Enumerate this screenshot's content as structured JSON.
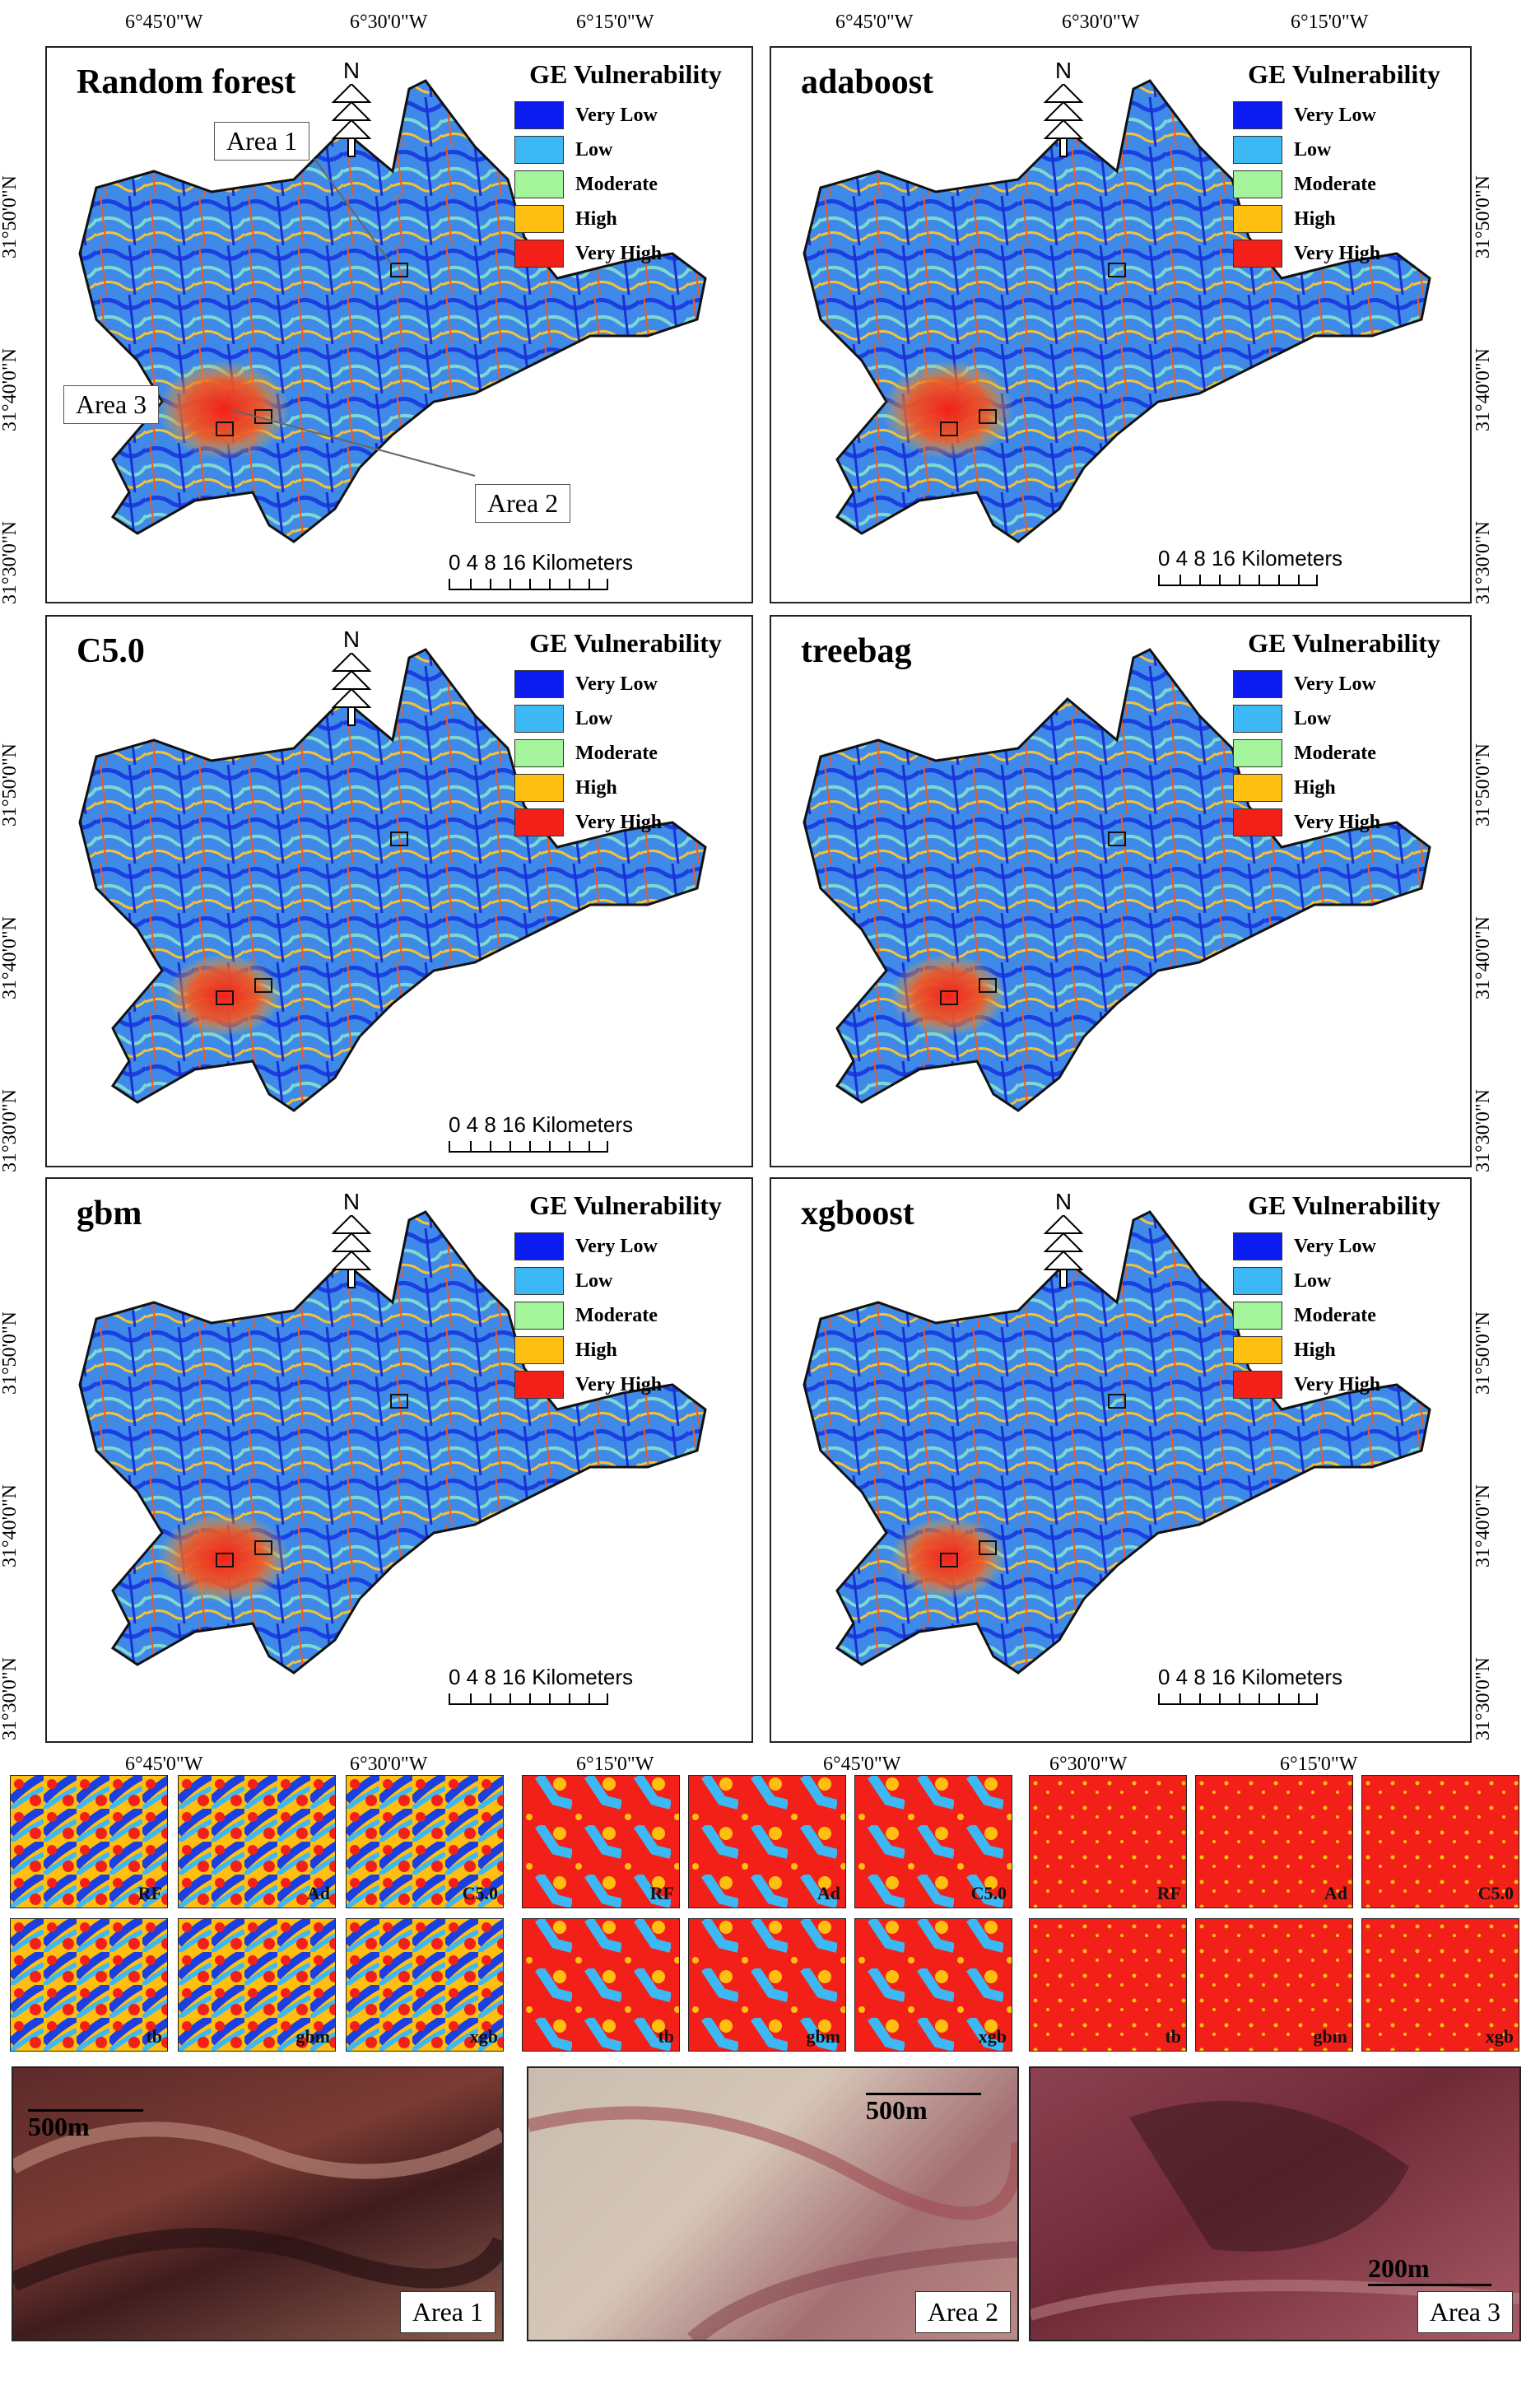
{
  "lon_labels": [
    "6°45'0\"W",
    "6°30'0\"W",
    "6°15'0\"W"
  ],
  "lat_labels": [
    "31°50'0\"N",
    "31°40'0\"N",
    "31°30'0\"N"
  ],
  "legend": {
    "title": "GE Vulnerability",
    "classes": [
      {
        "label": "Very Low",
        "color": "#0b1cf0"
      },
      {
        "label": "Low",
        "color": "#3cb8f4"
      },
      {
        "label": "Moderate",
        "color": "#a4f49c"
      },
      {
        "label": "High",
        "color": "#ffbf10"
      },
      {
        "label": "Very High",
        "color": "#f3201a"
      }
    ]
  },
  "north_label": "N",
  "scale": {
    "nums": "0   4   8          16 Kilometers"
  },
  "panels": [
    {
      "title": "Random forest"
    },
    {
      "title": "adaboost"
    },
    {
      "title": "C5.0"
    },
    {
      "title": "treebag"
    },
    {
      "title": "gbm"
    },
    {
      "title": "xgboost"
    }
  ],
  "callouts": {
    "area1": "Area 1",
    "area2": "Area 2",
    "area3": "Area 3"
  },
  "thumb_labels_top": [
    "RF",
    "Ad",
    "C5.0"
  ],
  "thumb_labels_bottom": [
    "tb",
    "gbm",
    "xgb"
  ],
  "photos": [
    {
      "area": "Area 1",
      "scale": "500m"
    },
    {
      "area": "Area 2",
      "scale": "500m"
    },
    {
      "area": "Area 3",
      "scale": "200m"
    }
  ],
  "colors": {
    "very_low": "#0b1cf0",
    "low": "#3cb8f4",
    "moderate": "#a4f49c",
    "high": "#ffbf10",
    "very_high": "#f3201a"
  }
}
